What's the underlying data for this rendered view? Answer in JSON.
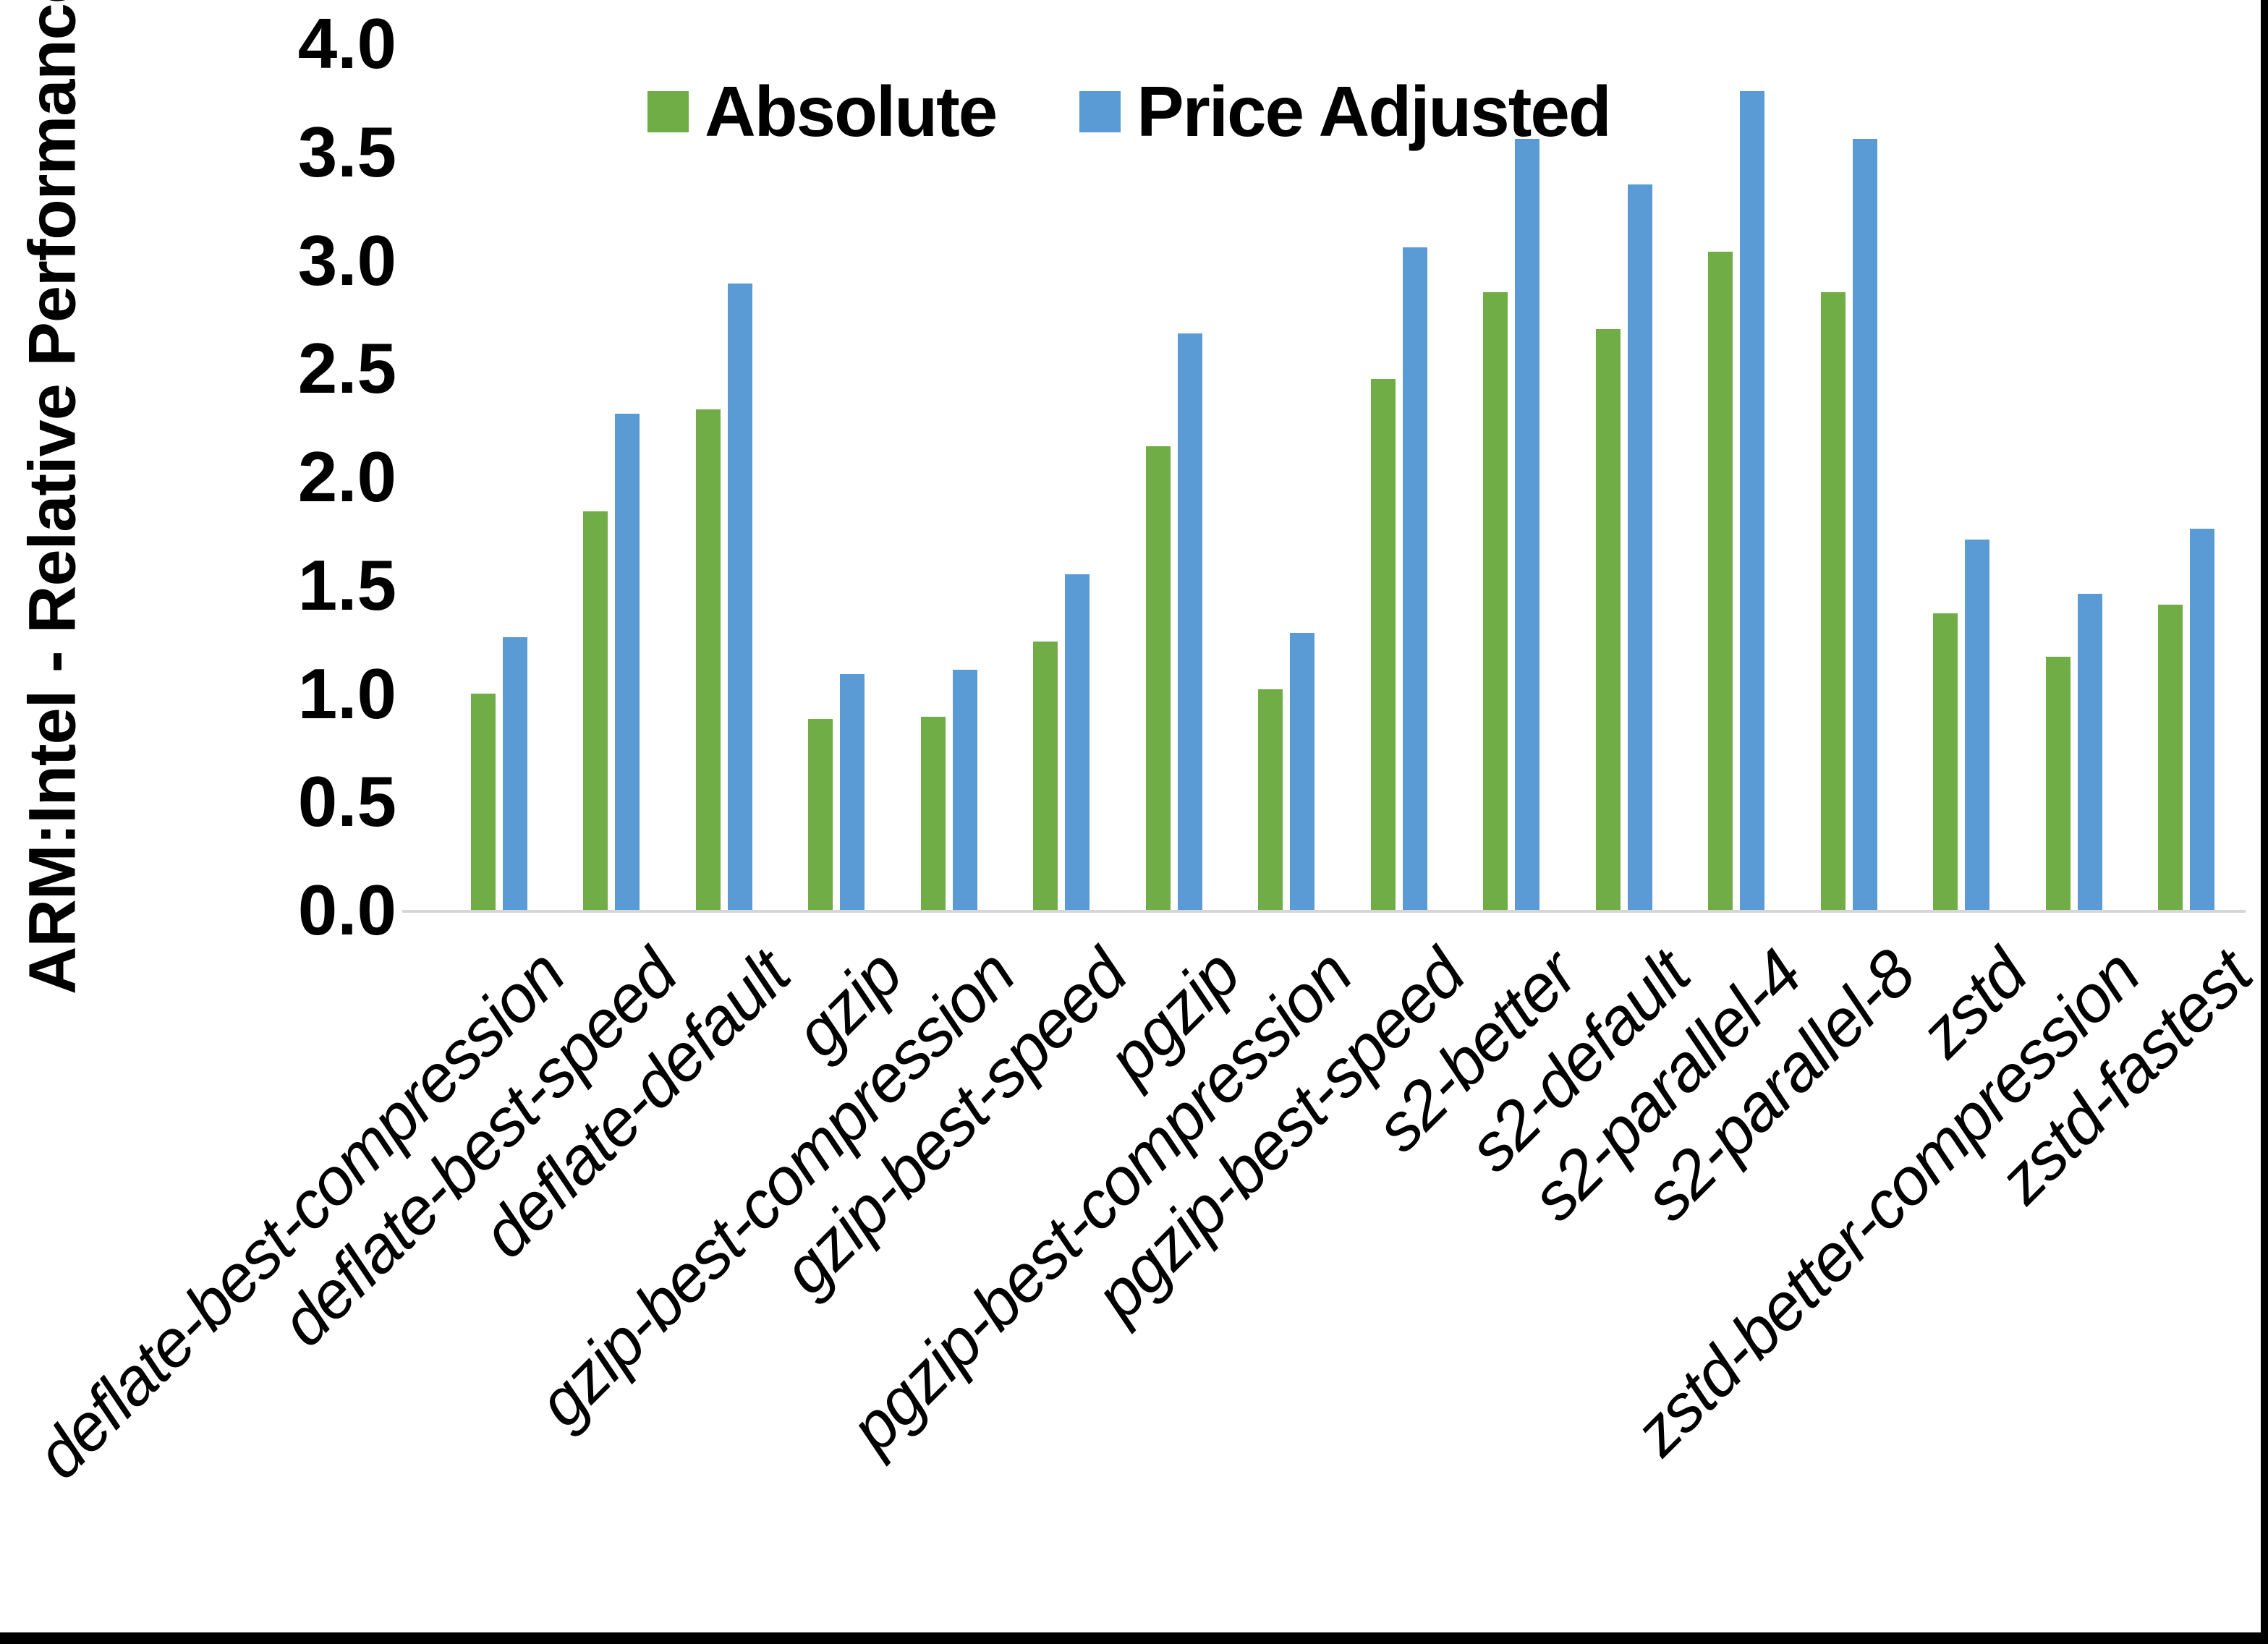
{
  "chart_data": {
    "type": "bar",
    "title": "",
    "ylabel": "ARM:Intel - Relative Performance",
    "xlabel": "",
    "ylim": [
      0.0,
      4.0
    ],
    "ytick_step": 0.5,
    "yticks": [
      "0.0",
      "0.5",
      "1.0",
      "1.5",
      "2.0",
      "2.5",
      "3.0",
      "3.5",
      "4.0"
    ],
    "grid": false,
    "legend_position": "top-center",
    "categories": [
      "deflate-best-compression",
      "deflate-best-speed",
      "deflate-default",
      "gzip",
      "gzip-best-compression",
      "gzip-best-speed",
      "pgzip",
      "pgzip-best-compression",
      "pgzip-best-speed",
      "s2-better",
      "s2-default",
      "s2-parallel-4",
      "s2-parallel-8",
      "zstd",
      "zstd-better-compression",
      "zstd-fastest"
    ],
    "series": [
      {
        "name": "Absolute",
        "color": "#70AD47",
        "values": [
          1.0,
          1.84,
          2.31,
          0.88,
          0.89,
          1.24,
          2.14,
          1.02,
          2.45,
          2.85,
          2.68,
          3.04,
          2.85,
          1.37,
          1.17,
          1.41
        ]
      },
      {
        "name": "Price Adjusted",
        "color": "#5B9BD5",
        "values": [
          1.26,
          2.29,
          2.89,
          1.09,
          1.11,
          1.55,
          2.66,
          1.28,
          3.06,
          3.56,
          3.35,
          3.78,
          3.56,
          1.71,
          1.46,
          1.76
        ]
      }
    ]
  },
  "colors": {
    "background": "#FFFFFF",
    "text": "#000000",
    "axis_line": "#D6D6D6",
    "border": "#000000"
  }
}
